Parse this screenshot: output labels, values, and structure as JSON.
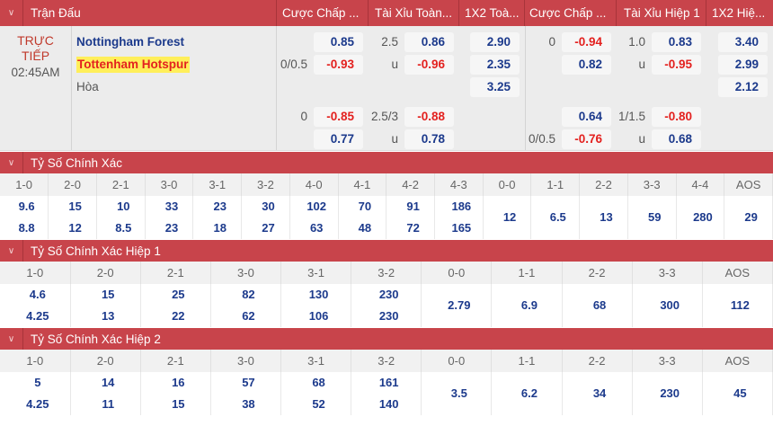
{
  "header": {
    "match": "Trận Đấu",
    "cols": [
      "Cược Chấp ...",
      "Tài Xỉu Toàn...",
      "1X2 Toà...",
      "Cược Chấp ...",
      "Tài Xỉu Hiệp 1",
      "1X2 Hiệ..."
    ]
  },
  "match": {
    "status": "TRỰC TIẾP",
    "time": "02:45AM",
    "home": "Nottingham Forest",
    "away": "Tottenham Hotspur",
    "draw": "Hòa"
  },
  "markets": [
    [
      {
        "v": "0.85"
      },
      {
        "l": "0/0.5",
        "v": "-0.93"
      },
      {},
      {
        "l": "0",
        "v": "-0.85"
      },
      {
        "v": "0.77"
      }
    ],
    [
      {
        "l": "2.5",
        "v": "0.86"
      },
      {
        "l": "u",
        "v": "-0.96"
      },
      {},
      {
        "l": "2.5/3",
        "v": "-0.88"
      },
      {
        "l": "u",
        "v": "0.78"
      }
    ],
    [
      {
        "v": "2.90"
      },
      {
        "v": "2.35"
      },
      {
        "v": "3.25"
      },
      {},
      {}
    ],
    [
      {
        "l": "0",
        "v": "-0.94"
      },
      {
        "v": "0.82"
      },
      {},
      {
        "v": "0.64"
      },
      {
        "l": "0/0.5",
        "v": "-0.76"
      }
    ],
    [
      {
        "l": "1.0",
        "v": "0.83"
      },
      {
        "l": "u",
        "v": "-0.95"
      },
      {},
      {
        "l": "1/1.5",
        "v": "-0.80"
      },
      {
        "l": "u",
        "v": "0.68"
      }
    ],
    [
      {
        "v": "3.40"
      },
      {
        "v": "2.99"
      },
      {
        "v": "2.12"
      },
      {},
      {}
    ]
  ],
  "sections": [
    {
      "title": "Tỷ Số Chính Xác",
      "cols": [
        [
          "1-0",
          "9.6",
          "8.8"
        ],
        [
          "2-0",
          "15",
          "12"
        ],
        [
          "2-1",
          "10",
          "8.5"
        ],
        [
          "3-0",
          "33",
          "23"
        ],
        [
          "3-1",
          "23",
          "18"
        ],
        [
          "3-2",
          "30",
          "27"
        ],
        [
          "4-0",
          "102",
          "63"
        ],
        [
          "4-1",
          "70",
          "48"
        ],
        [
          "4-2",
          "91",
          "72"
        ],
        [
          "4-3",
          "186",
          "165"
        ],
        [
          "0-0",
          "12"
        ],
        [
          "1-1",
          "6.5"
        ],
        [
          "2-2",
          "13"
        ],
        [
          "3-3",
          "59"
        ],
        [
          "4-4",
          "280"
        ],
        [
          "AOS",
          "29"
        ]
      ]
    },
    {
      "title": "Tỷ Số Chính Xác Hiệp 1",
      "cols": [
        [
          "1-0",
          "4.6",
          "4.25"
        ],
        [
          "2-0",
          "15",
          "13"
        ],
        [
          "2-1",
          "25",
          "22"
        ],
        [
          "3-0",
          "82",
          "62"
        ],
        [
          "3-1",
          "130",
          "106"
        ],
        [
          "3-2",
          "230",
          "230"
        ],
        [
          "0-0",
          "2.79"
        ],
        [
          "1-1",
          "6.9"
        ],
        [
          "2-2",
          "68"
        ],
        [
          "3-3",
          "300"
        ],
        [
          "AOS",
          "112"
        ]
      ]
    },
    {
      "title": "Tỷ Số Chính Xác Hiệp 2",
      "cols": [
        [
          "1-0",
          "5",
          "4.25"
        ],
        [
          "2-0",
          "14",
          "11"
        ],
        [
          "2-1",
          "16",
          "15"
        ],
        [
          "3-0",
          "57",
          "38"
        ],
        [
          "3-1",
          "68",
          "52"
        ],
        [
          "3-2",
          "161",
          "140"
        ],
        [
          "0-0",
          "3.5"
        ],
        [
          "1-1",
          "6.2"
        ],
        [
          "2-2",
          "34"
        ],
        [
          "3-3",
          "230"
        ],
        [
          "AOS",
          "45"
        ]
      ]
    }
  ]
}
